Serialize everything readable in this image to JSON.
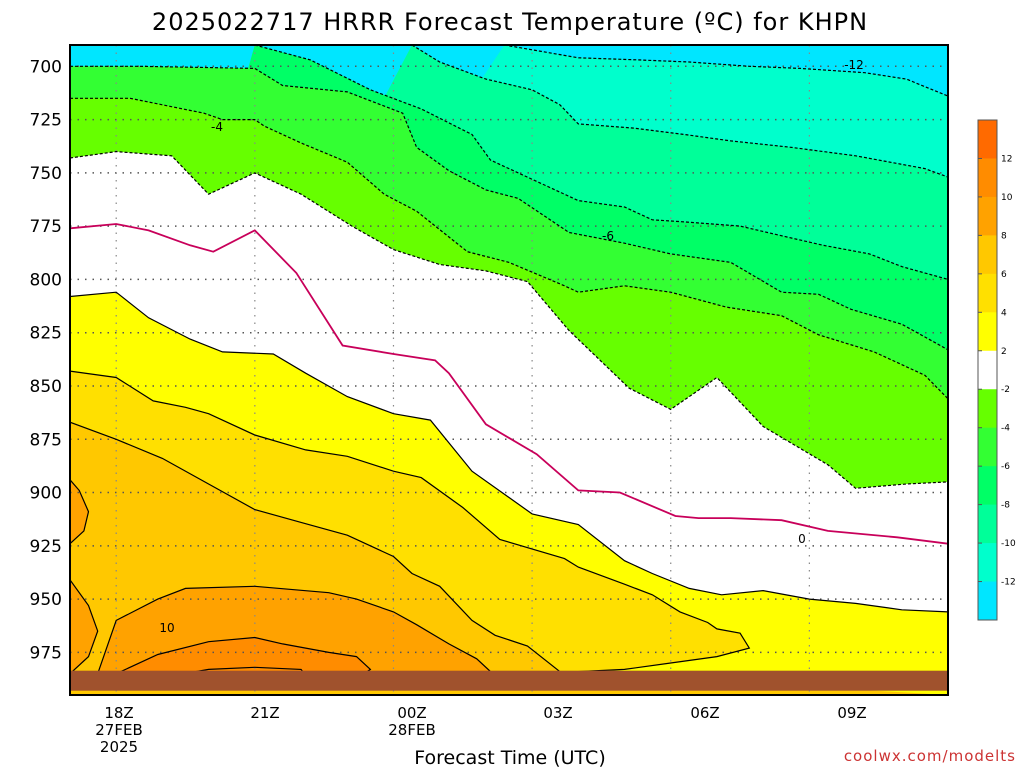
{
  "chart_data": {
    "type": "heatmap",
    "title": "2025022717 HRRR Forecast Temperature (ºC) for KHPN",
    "xlabel": "Forecast Time (UTC)",
    "ylabel": "",
    "credit": "coolwx.com/modelts",
    "y_axis": {
      "unit": "hPa",
      "reversed": true,
      "range": [
        690,
        995
      ],
      "ticks": [
        "700",
        "725",
        "750",
        "775",
        "800",
        "825",
        "850",
        "875",
        "900",
        "925",
        "950",
        "975"
      ]
    },
    "x_axis": {
      "range_hours": [
        -1,
        18
      ],
      "ticks": [
        {
          "hour": 0,
          "lines": [
            "18Z",
            "27FEB",
            "2025"
          ]
        },
        {
          "hour": 3,
          "lines": [
            "21Z"
          ]
        },
        {
          "hour": 6,
          "lines": [
            "00Z",
            "28FEB"
          ]
        },
        {
          "hour": 9,
          "lines": [
            "03Z"
          ]
        },
        {
          "hour": 12,
          "lines": [
            "06Z"
          ]
        },
        {
          "hour": 15,
          "lines": [
            "09Z"
          ]
        }
      ]
    },
    "grid": true,
    "legend_placement": "right",
    "colorbar": {
      "levels": [
        "-12",
        "-10",
        "-8",
        "-6",
        "-4",
        "-2",
        "2",
        "4",
        "6",
        "8",
        "10",
        "12"
      ],
      "colors": [
        "#00e6ff",
        "#00ffcc",
        "#00ff99",
        "#00ff66",
        "#33ff33",
        "#66ff00",
        "#ffffff",
        "#ffff00",
        "#ffe000",
        "#ffc800",
        "#ffa200",
        "#ff8c00",
        "#ff6a00"
      ]
    },
    "contour_labels": [
      "-12",
      "-4",
      "-6",
      "0",
      "10"
    ],
    "fill_colors": {
      "lt_m12": "#00e6ff",
      "m12_m10": "#00ffcc",
      "m10_m8": "#00ff99",
      "m8_m6": "#00ff66",
      "m6_m4": "#33ff33",
      "m4_m2": "#66ff00",
      "m2_2": "#ffffff",
      "p2_4": "#ffff00",
      "p4_6": "#ffe000",
      "p6_8": "#ffc800",
      "p8_10": "#ffa200",
      "p10_12": "#ff8c00",
      "zero_line": "#c8005a",
      "ground": "#a0522d"
    },
    "isotherms": [
      {
        "value": -12,
        "points": [
          [
            8.4,
            690
          ],
          [
            9.2,
            693
          ],
          [
            10.0,
            696
          ],
          [
            11.3,
            697
          ],
          [
            12.4,
            698
          ],
          [
            13.7,
            700
          ],
          [
            14.8,
            701
          ],
          [
            16.2,
            703
          ],
          [
            17.1,
            706
          ],
          [
            18.0,
            714
          ]
        ]
      },
      {
        "value": -10,
        "points": [
          [
            6.4,
            690
          ],
          [
            7.0,
            698
          ],
          [
            8.0,
            706
          ],
          [
            9.0,
            711
          ],
          [
            9.6,
            718
          ],
          [
            10.0,
            727
          ],
          [
            11.2,
            729
          ],
          [
            12.3,
            732
          ],
          [
            13.3,
            735
          ],
          [
            14.6,
            738
          ],
          [
            16.0,
            742
          ],
          [
            17.5,
            748
          ],
          [
            18.0,
            752
          ]
        ]
      },
      {
        "value": -8,
        "points": [
          [
            3.0,
            690
          ],
          [
            4.2,
            697
          ],
          [
            5.5,
            711
          ],
          [
            6.6,
            720
          ],
          [
            7.7,
            732
          ],
          [
            8.1,
            744
          ],
          [
            9.0,
            753
          ],
          [
            10.0,
            763
          ],
          [
            11.0,
            766
          ],
          [
            11.6,
            772
          ],
          [
            12.3,
            773
          ],
          [
            13.5,
            775
          ],
          [
            14.3,
            779
          ],
          [
            15.3,
            784
          ],
          [
            16.3,
            788
          ],
          [
            17.0,
            794
          ],
          [
            18.0,
            800
          ]
        ]
      },
      {
        "value": -6,
        "points": [
          [
            -1,
            700
          ],
          [
            0.5,
            700
          ],
          [
            3.0,
            701
          ],
          [
            3.6,
            709
          ],
          [
            5.0,
            712
          ],
          [
            6.2,
            722
          ],
          [
            6.5,
            738
          ],
          [
            7.2,
            749
          ],
          [
            8.0,
            758
          ],
          [
            8.7,
            762
          ],
          [
            9.8,
            778
          ],
          [
            11.0,
            783
          ],
          [
            12.0,
            788
          ],
          [
            13.3,
            792
          ],
          [
            14.4,
            806
          ],
          [
            15.2,
            807
          ],
          [
            15.9,
            814
          ],
          [
            17.0,
            821
          ],
          [
            18.0,
            833
          ]
        ]
      },
      {
        "value": -4,
        "points": [
          [
            -1,
            715
          ],
          [
            0.3,
            715
          ],
          [
            1.9,
            722
          ],
          [
            2.3,
            725
          ],
          [
            3.0,
            725
          ],
          [
            3.2,
            728
          ],
          [
            4.0,
            736
          ],
          [
            5.0,
            745
          ],
          [
            5.8,
            760
          ],
          [
            6.5,
            768
          ],
          [
            7.6,
            787
          ],
          [
            8.5,
            792
          ],
          [
            9.7,
            803
          ],
          [
            10.0,
            806
          ],
          [
            11.0,
            803
          ],
          [
            12.0,
            806
          ],
          [
            13.2,
            813
          ],
          [
            14.4,
            817
          ],
          [
            15.2,
            826
          ],
          [
            16.4,
            834
          ],
          [
            17.5,
            845
          ],
          [
            18.0,
            856
          ]
        ]
      },
      {
        "value": -2,
        "points": [
          [
            -1,
            743
          ],
          [
            0,
            740
          ],
          [
            1.2,
            742
          ],
          [
            2.0,
            760
          ],
          [
            3.0,
            750
          ],
          [
            4.0,
            760
          ],
          [
            5.1,
            775
          ],
          [
            6.0,
            786
          ],
          [
            7.0,
            793
          ],
          [
            8.0,
            796
          ],
          [
            8.9,
            801
          ],
          [
            9.8,
            824
          ],
          [
            11.1,
            851
          ],
          [
            12.0,
            861
          ],
          [
            13.0,
            846
          ],
          [
            14.0,
            869
          ],
          [
            15.4,
            887
          ],
          [
            16.0,
            898
          ],
          [
            17.1,
            896
          ],
          [
            18.0,
            895
          ]
        ]
      },
      {
        "value": 0,
        "points": [
          [
            -1,
            776
          ],
          [
            0,
            774
          ],
          [
            0.7,
            777
          ],
          [
            1.6,
            784
          ],
          [
            2.1,
            787
          ],
          [
            3.0,
            777
          ],
          [
            3.9,
            797
          ],
          [
            4.9,
            831
          ],
          [
            6.0,
            835
          ],
          [
            6.9,
            838
          ],
          [
            7.2,
            844
          ],
          [
            8.0,
            868
          ],
          [
            9.1,
            882
          ],
          [
            10.0,
            899
          ],
          [
            10.9,
            900
          ],
          [
            12.1,
            911
          ],
          [
            12.6,
            912
          ],
          [
            13.3,
            912
          ],
          [
            14.4,
            913
          ],
          [
            15.4,
            918
          ],
          [
            16.9,
            921
          ],
          [
            18.0,
            924
          ]
        ]
      },
      {
        "value": 2,
        "points": [
          [
            -1,
            808
          ],
          [
            0,
            806
          ],
          [
            0.7,
            818
          ],
          [
            1.6,
            828
          ],
          [
            2.3,
            834
          ],
          [
            3.4,
            835
          ],
          [
            4.1,
            844
          ],
          [
            5.0,
            855
          ],
          [
            6.0,
            863
          ],
          [
            6.8,
            866
          ],
          [
            7.7,
            890
          ],
          [
            9.0,
            910
          ],
          [
            10.0,
            915
          ],
          [
            11.0,
            932
          ],
          [
            11.6,
            938
          ],
          [
            12.4,
            945
          ],
          [
            13.1,
            948
          ],
          [
            14.0,
            946
          ],
          [
            15.0,
            950
          ],
          [
            16.0,
            952
          ],
          [
            17.0,
            955
          ],
          [
            18.0,
            956
          ]
        ]
      },
      {
        "value": 4,
        "points": [
          [
            -1,
            843
          ],
          [
            0,
            846
          ],
          [
            0.8,
            857
          ],
          [
            1.5,
            860
          ],
          [
            2.0,
            863
          ],
          [
            3.0,
            873
          ],
          [
            4.1,
            880
          ],
          [
            5.0,
            883
          ],
          [
            6.0,
            890
          ],
          [
            6.6,
            893
          ],
          [
            7.5,
            907
          ],
          [
            8.3,
            922
          ],
          [
            9.7,
            931
          ],
          [
            10.0,
            935
          ],
          [
            11.0,
            943
          ],
          [
            11.6,
            948
          ],
          [
            12.2,
            956
          ],
          [
            12.8,
            961
          ],
          [
            13.0,
            964
          ],
          [
            13.5,
            966
          ],
          [
            13.7,
            973
          ],
          [
            13.0,
            977
          ],
          [
            12.0,
            980
          ],
          [
            11.0,
            983
          ],
          [
            10.0,
            984
          ],
          [
            9.0,
            985
          ]
        ]
      },
      {
        "value": 6,
        "points": [
          [
            -1,
            867
          ],
          [
            0,
            875
          ],
          [
            1.0,
            884
          ],
          [
            2.0,
            896
          ],
          [
            3.0,
            908
          ],
          [
            4.0,
            914
          ],
          [
            5.0,
            920
          ],
          [
            6.0,
            930
          ],
          [
            6.4,
            938
          ],
          [
            7.0,
            944
          ],
          [
            7.7,
            960
          ],
          [
            8.2,
            967
          ],
          [
            8.9,
            972
          ],
          [
            9.6,
            984
          ],
          [
            10.1,
            985
          ]
        ]
      },
      {
        "value": 8,
        "points": [
          [
            -1,
            894
          ],
          [
            -0.8,
            899
          ],
          [
            -0.6,
            909
          ],
          [
            -0.7,
            918
          ],
          [
            -1,
            924
          ]
        ]
      },
      {
        "value": 8,
        "points": [
          [
            -1,
            941
          ],
          [
            -0.6,
            953
          ],
          [
            -0.4,
            965
          ],
          [
            -0.6,
            977
          ],
          [
            -1,
            985
          ]
        ]
      },
      {
        "value": 8,
        "points": [
          [
            -0.4,
            985
          ],
          [
            0,
            960
          ],
          [
            0.9,
            950
          ],
          [
            1.5,
            945
          ],
          [
            3.0,
            944
          ],
          [
            4.6,
            947
          ],
          [
            5.2,
            950
          ],
          [
            6.0,
            956
          ],
          [
            6.5,
            962
          ],
          [
            7.2,
            971
          ],
          [
            7.8,
            978
          ],
          [
            8.1,
            984
          ],
          [
            8.3,
            986
          ]
        ]
      },
      {
        "value": 10,
        "points": [
          [
            0,
            985
          ],
          [
            0.9,
            976
          ],
          [
            2.0,
            970
          ],
          [
            3.0,
            968
          ],
          [
            3.6,
            971
          ],
          [
            4.6,
            975
          ],
          [
            5.2,
            977
          ],
          [
            5.5,
            983
          ],
          [
            5.3,
            986
          ]
        ]
      },
      {
        "value": 12,
        "points": [
          [
            1.2,
            986
          ],
          [
            2.0,
            983
          ],
          [
            3.0,
            982
          ],
          [
            4.0,
            983
          ],
          [
            4.1,
            986
          ]
        ]
      }
    ],
    "surface_hPa": 985
  }
}
